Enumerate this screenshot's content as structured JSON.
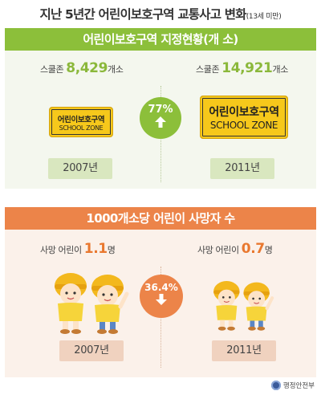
{
  "header": {
    "title": "지난 5년간 어린이보호구역 교통사고 변화",
    "subtitle": "(13세 미만)"
  },
  "section1": {
    "title": "어린이보호구역 지정현황(개 소)",
    "left": {
      "prefix": "스쿨존 ",
      "value": "8,429",
      "unit": "개소",
      "year": "2007년"
    },
    "right": {
      "prefix": "스쿨존 ",
      "value": "14,921",
      "unit": "개소",
      "year": "2011년"
    },
    "change": {
      "value": "77%",
      "direction": "up",
      "color": "#8cbf3a"
    },
    "sign": {
      "line1": "어린이보호구역",
      "line2": "SCHOOL ZONE"
    }
  },
  "section2": {
    "title": "1000개소당 어린이 사망자 수",
    "left": {
      "prefix": "사망 어린이 ",
      "value": "1.1",
      "unit": "명",
      "year": "2007년"
    },
    "right": {
      "prefix": "사망 어린이 ",
      "value": "0.7",
      "unit": "명",
      "year": "2011년"
    },
    "change": {
      "value": "36.4%",
      "direction": "down",
      "color": "#ec8449"
    }
  },
  "footer": {
    "logo_text": "행정안전부"
  },
  "illustrations": [
    "school-zone-sign-icon",
    "children-with-yellow-hats-icon"
  ]
}
